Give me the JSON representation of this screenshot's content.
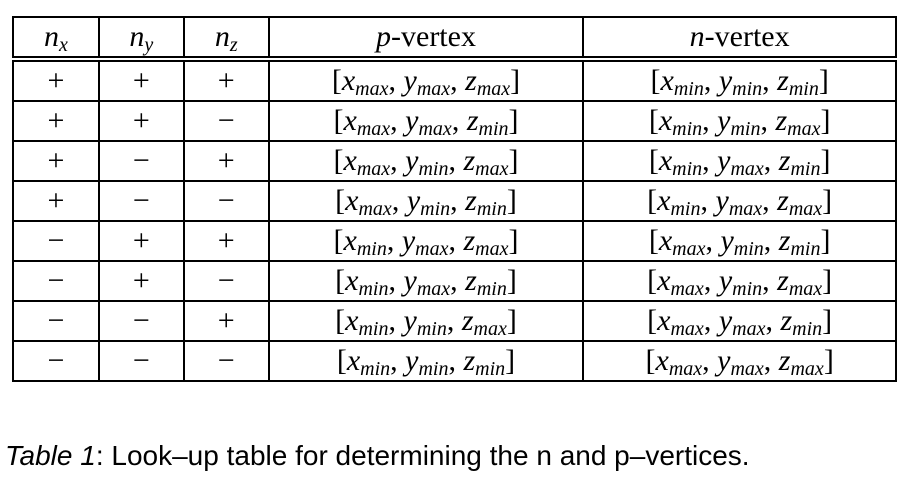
{
  "table": {
    "header": [
      {
        "base": "n",
        "sub": "x"
      },
      {
        "base": "n",
        "sub": "y"
      },
      {
        "base": "n",
        "sub": "z"
      },
      {
        "italic": "p",
        "text": "-vertex"
      },
      {
        "italic": "n",
        "text": "-vertex"
      }
    ],
    "rows": [
      [
        "+",
        "+",
        "+",
        [
          {
            "base": "x",
            "sub": "max"
          },
          {
            "base": "y",
            "sub": "max"
          },
          {
            "base": "z",
            "sub": "max"
          }
        ],
        [
          {
            "base": "x",
            "sub": "min"
          },
          {
            "base": "y",
            "sub": "min"
          },
          {
            "base": "z",
            "sub": "min"
          }
        ]
      ],
      [
        "+",
        "+",
        "−",
        [
          {
            "base": "x",
            "sub": "max"
          },
          {
            "base": "y",
            "sub": "max"
          },
          {
            "base": "z",
            "sub": "min"
          }
        ],
        [
          {
            "base": "x",
            "sub": "min"
          },
          {
            "base": "y",
            "sub": "min"
          },
          {
            "base": "z",
            "sub": "max"
          }
        ]
      ],
      [
        "+",
        "−",
        "+",
        [
          {
            "base": "x",
            "sub": "max"
          },
          {
            "base": "y",
            "sub": "min"
          },
          {
            "base": "z",
            "sub": "max"
          }
        ],
        [
          {
            "base": "x",
            "sub": "min"
          },
          {
            "base": "y",
            "sub": "max"
          },
          {
            "base": "z",
            "sub": "min"
          }
        ]
      ],
      [
        "+",
        "−",
        "−",
        [
          {
            "base": "x",
            "sub": "max"
          },
          {
            "base": "y",
            "sub": "min"
          },
          {
            "base": "z",
            "sub": "min"
          }
        ],
        [
          {
            "base": "x",
            "sub": "min"
          },
          {
            "base": "y",
            "sub": "max"
          },
          {
            "base": "z",
            "sub": "max"
          }
        ]
      ],
      [
        "−",
        "+",
        "+",
        [
          {
            "base": "x",
            "sub": "min"
          },
          {
            "base": "y",
            "sub": "max"
          },
          {
            "base": "z",
            "sub": "max"
          }
        ],
        [
          {
            "base": "x",
            "sub": "max"
          },
          {
            "base": "y",
            "sub": "min"
          },
          {
            "base": "z",
            "sub": "min"
          }
        ]
      ],
      [
        "−",
        "+",
        "−",
        [
          {
            "base": "x",
            "sub": "min"
          },
          {
            "base": "y",
            "sub": "max"
          },
          {
            "base": "z",
            "sub": "min"
          }
        ],
        [
          {
            "base": "x",
            "sub": "max"
          },
          {
            "base": "y",
            "sub": "min"
          },
          {
            "base": "z",
            "sub": "max"
          }
        ]
      ],
      [
        "−",
        "−",
        "+",
        [
          {
            "base": "x",
            "sub": "min"
          },
          {
            "base": "y",
            "sub": "min"
          },
          {
            "base": "z",
            "sub": "max"
          }
        ],
        [
          {
            "base": "x",
            "sub": "max"
          },
          {
            "base": "y",
            "sub": "max"
          },
          {
            "base": "z",
            "sub": "min"
          }
        ]
      ],
      [
        "−",
        "−",
        "−",
        [
          {
            "base": "x",
            "sub": "min"
          },
          {
            "base": "y",
            "sub": "min"
          },
          {
            "base": "z",
            "sub": "min"
          }
        ],
        [
          {
            "base": "x",
            "sub": "max"
          },
          {
            "base": "y",
            "sub": "max"
          },
          {
            "base": "z",
            "sub": "max"
          }
        ]
      ]
    ]
  },
  "caption": {
    "label": "Table 1",
    "text": ": Look–up table for determining the n and p–vertices."
  }
}
